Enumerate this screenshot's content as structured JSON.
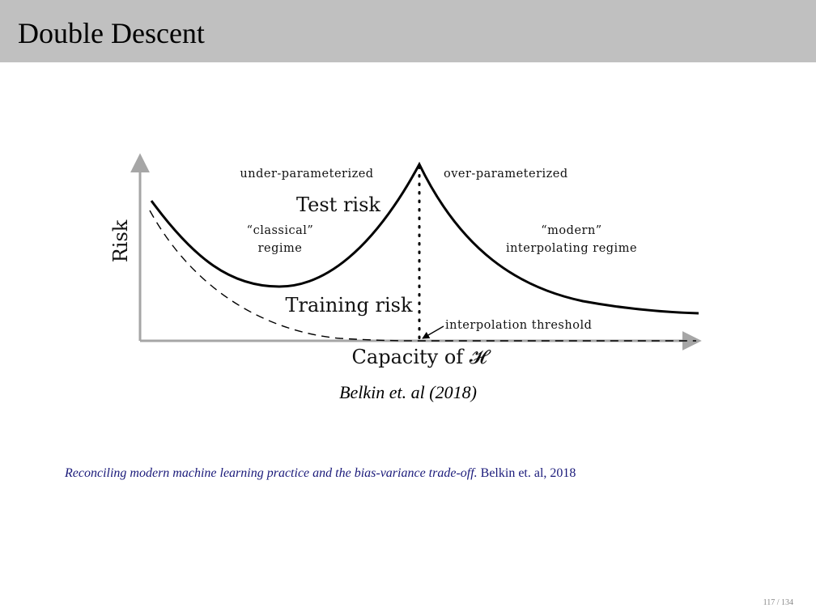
{
  "slide": {
    "title": "Double Descent",
    "page_number": "117 / 134"
  },
  "figure": {
    "y_axis_label": "Risk",
    "x_axis_label": "Capacity of 𝓗",
    "test_curve_label": "Test risk",
    "training_curve_label": "Training risk",
    "left_region_title": "under-parameterized",
    "right_region_title": "over-parameterized",
    "left_regime_line1": "“classical”",
    "left_regime_line2": "regime",
    "right_regime_line1": "“modern”",
    "right_regime_line2": "interpolating regime",
    "threshold_label": "interpolation threshold",
    "caption": "Belkin et. al (2018)",
    "colors": {
      "axis": "#a6a6a6",
      "curve": "#000000"
    }
  },
  "reference": {
    "title": "Reconciling modern machine learning practice and the bias-variance trade-off.",
    "authors": "Belkin et. al, 2018",
    "color": "#1a1a7a"
  }
}
